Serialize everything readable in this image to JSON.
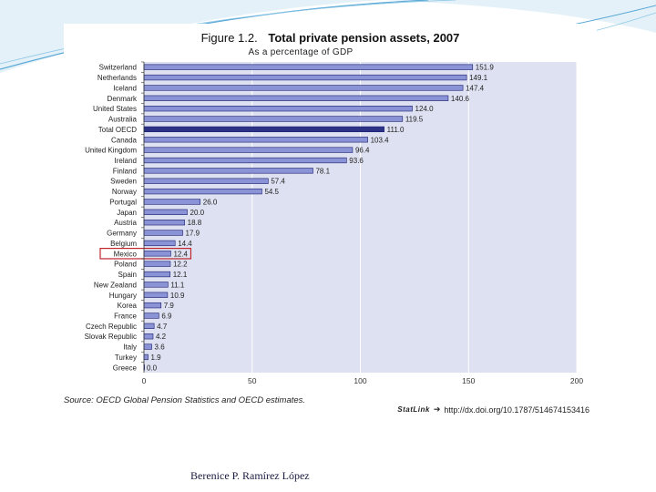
{
  "slide": {
    "author": "Berenice P. Ramírez López"
  },
  "figure": {
    "number": "Figure 1.2.",
    "title": "Total private pension assets, 2007",
    "subtitle": "As a percentage of GDP",
    "source": "Source: OECD Global Pension Statistics and OECD estimates.",
    "statlink_label": "StatLink",
    "statlink_url": "http://dx.doi.org/10.1787/514674153416"
  },
  "chart_data": {
    "type": "bar",
    "orientation": "horizontal",
    "title": "Total private pension assets, 2007",
    "xlabel": "As a percentage of GDP",
    "ylabel": "",
    "xlim": [
      0,
      200
    ],
    "xticks": [
      0,
      50,
      100,
      150,
      200
    ],
    "highlight": "Mexico",
    "categories": [
      "Switzerland",
      "Netherlands",
      "Iceland",
      "Denmark",
      "United States",
      "Australia",
      "Total OECD",
      "Canada",
      "United Kingdom",
      "Ireland",
      "Finland",
      "Sweden",
      "Norway",
      "Portugal",
      "Japan",
      "Austria",
      "Germany",
      "Belgium",
      "Mexico",
      "Poland",
      "Spain",
      "New Zealand",
      "Hungary",
      "Korea",
      "France",
      "Czech Republic",
      "Slovak Republic",
      "Italy",
      "Turkey",
      "Greece"
    ],
    "values": [
      151.9,
      149.1,
      147.4,
      140.6,
      124.0,
      119.5,
      111.0,
      103.4,
      96.4,
      93.6,
      78.1,
      57.4,
      54.5,
      26.0,
      20.0,
      18.8,
      17.9,
      14.4,
      12.4,
      12.2,
      12.1,
      11.1,
      10.9,
      7.9,
      6.9,
      4.7,
      4.2,
      3.6,
      1.9,
      0.0
    ],
    "value_labels": [
      "151.9",
      "149.1",
      "147.4",
      "140.6",
      "124.0",
      "119.5",
      "111.0",
      "103.4",
      "96.4",
      "93.6",
      "78.1",
      "57.4",
      "54.5",
      "26.0",
      "20.0",
      "18.8",
      "17.9",
      "14.4",
      "12.4",
      "12.2",
      "12.1",
      "11.1",
      "10.9",
      "7.9",
      "6.9",
      "4.7",
      "4.2",
      "3.6",
      "1.9",
      "0.0"
    ]
  },
  "colors": {
    "plot_bg": "#dde1f1",
    "bar_fill": "#8a93d6",
    "bar_stroke": "#1c1f6e",
    "total_bar": "#2c3387",
    "grid": "#ffffff",
    "highlight": "#c0282d",
    "deco_line": "#5aa9d6"
  }
}
